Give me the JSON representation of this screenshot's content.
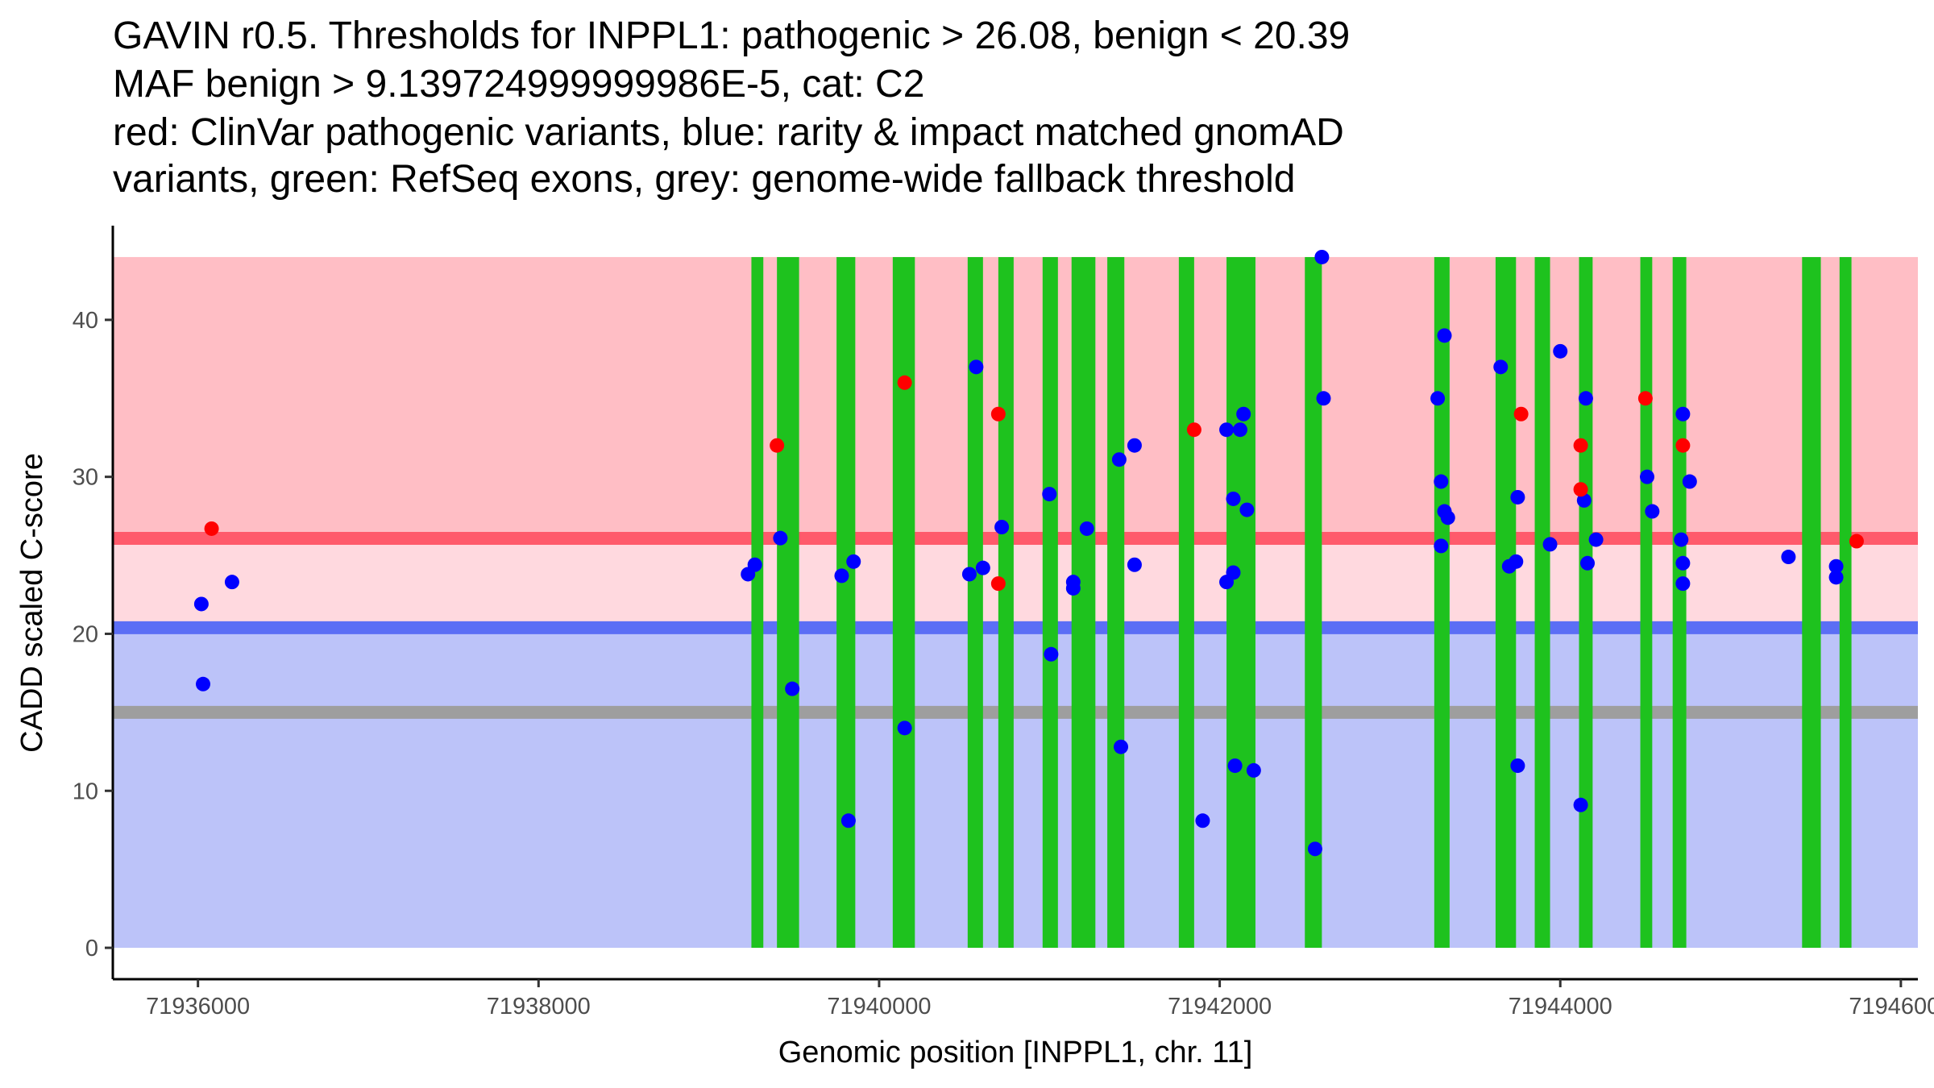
{
  "chart_data": {
    "type": "scatter",
    "title_lines": [
      "GAVIN r0.5. Thresholds for INPPL1: pathogenic > 26.08, benign < 20.39",
      "MAF benign > 9.139724999999986E-5, cat: C2",
      "red: ClinVar pathogenic variants, blue: rarity & impact matched gnomAD",
      "variants, green: RefSeq exons, grey: genome-wide fallback threshold"
    ],
    "xlabel": "Genomic position [INPPL1, chr. 11]",
    "ylabel": "CADD scaled C-score",
    "xlim": [
      71935500,
      71946100
    ],
    "ylim": [
      -2,
      46
    ],
    "x_ticks": [
      71936000,
      71938000,
      71940000,
      71942000,
      71944000,
      71946000
    ],
    "x_tick_labels": [
      "71936000",
      "71938000",
      "71940000",
      "71942000",
      "71944000",
      "71946000"
    ],
    "y_ticks": [
      0,
      10,
      20,
      30,
      40
    ],
    "y_tick_labels": [
      "0",
      "10",
      "20",
      "30",
      "40"
    ],
    "bands": [
      {
        "name": "pathogenic-zone",
        "y0": 26.08,
        "y1": 44,
        "color": "#ffbec5"
      },
      {
        "name": "intermediate-zone",
        "y0": 20.39,
        "y1": 26.08,
        "color": "#ffd9df"
      },
      {
        "name": "benign-zone",
        "y0": 0,
        "y1": 20.39,
        "color": "#bcc3f9"
      }
    ],
    "band_x_range": [
      71935500,
      71946100
    ],
    "band_x_start": 71935500,
    "thresholds": [
      {
        "name": "pathogenic-threshold",
        "y": 26.08,
        "color": "#ff5a6b"
      },
      {
        "name": "benign-threshold",
        "y": 20.39,
        "color": "#5b6ef5"
      },
      {
        "name": "fallback-threshold",
        "y": 15,
        "color": "#9e9e9e"
      }
    ],
    "exons": [
      [
        71939250,
        71939320
      ],
      [
        71939400,
        71939530
      ],
      [
        71939750,
        71939860
      ],
      [
        71940080,
        71940210
      ],
      [
        71940520,
        71940610
      ],
      [
        71940700,
        71940790
      ],
      [
        71940960,
        71941050
      ],
      [
        71941130,
        71941270
      ],
      [
        71941340,
        71941440
      ],
      [
        71941760,
        71941850
      ],
      [
        71942040,
        71942210
      ],
      [
        71942500,
        71942600
      ],
      [
        71943260,
        71943350
      ],
      [
        71943620,
        71943740
      ],
      [
        71943850,
        71943940
      ],
      [
        71944110,
        71944190
      ],
      [
        71944470,
        71944540
      ],
      [
        71944660,
        71944740
      ],
      [
        71945420,
        71945530
      ],
      [
        71945640,
        71945710
      ]
    ],
    "exon_color": "#1ec21e",
    "series": [
      {
        "name": "ClinVar pathogenic",
        "color": "#ff0000",
        "points": [
          [
            71936080,
            26.7
          ],
          [
            71939400,
            32.0
          ],
          [
            71940150,
            36.0
          ],
          [
            71940700,
            34.0
          ],
          [
            71940700,
            23.2
          ],
          [
            71941850,
            33.0
          ],
          [
            71943770,
            34.0
          ],
          [
            71944120,
            32.0
          ],
          [
            71944120,
            29.2
          ],
          [
            71944500,
            35.0
          ],
          [
            71944720,
            32.0
          ],
          [
            71945740,
            25.9
          ]
        ]
      },
      {
        "name": "gnomAD matched",
        "color": "#0000ff",
        "points": [
          [
            71936020,
            21.9
          ],
          [
            71936030,
            16.8
          ],
          [
            71936200,
            23.3
          ],
          [
            71939230,
            23.8
          ],
          [
            71939270,
            24.4
          ],
          [
            71939420,
            26.1
          ],
          [
            71939490,
            16.5
          ],
          [
            71939780,
            23.7
          ],
          [
            71939820,
            8.1
          ],
          [
            71939850,
            24.6
          ],
          [
            71940150,
            14.0
          ],
          [
            71940530,
            23.8
          ],
          [
            71940570,
            37.0
          ],
          [
            71940610,
            24.2
          ],
          [
            71940720,
            26.8
          ],
          [
            71941000,
            28.9
          ],
          [
            71941010,
            18.7
          ],
          [
            71941140,
            23.3
          ],
          [
            71941140,
            22.9
          ],
          [
            71941220,
            26.7
          ],
          [
            71941410,
            31.1
          ],
          [
            71941420,
            12.8
          ],
          [
            71941500,
            32.0
          ],
          [
            71941500,
            24.4
          ],
          [
            71941900,
            8.1
          ],
          [
            71942040,
            33.0
          ],
          [
            71942040,
            23.3
          ],
          [
            71942080,
            28.6
          ],
          [
            71942080,
            23.9
          ],
          [
            71942090,
            11.6
          ],
          [
            71942120,
            33.0
          ],
          [
            71942140,
            34.0
          ],
          [
            71942160,
            27.9
          ],
          [
            71942200,
            11.3
          ],
          [
            71942560,
            6.3
          ],
          [
            71942600,
            44.0
          ],
          [
            71942610,
            35.0
          ],
          [
            71943280,
            35.0
          ],
          [
            71943300,
            29.7
          ],
          [
            71943300,
            25.6
          ],
          [
            71943320,
            27.8
          ],
          [
            71943320,
            39.0
          ],
          [
            71943340,
            27.4
          ],
          [
            71943650,
            37.0
          ],
          [
            71943700,
            24.3
          ],
          [
            71943740,
            24.6
          ],
          [
            71943750,
            28.7
          ],
          [
            71943750,
            11.6
          ],
          [
            71943940,
            25.7
          ],
          [
            71944000,
            38.0
          ],
          [
            71944120,
            9.1
          ],
          [
            71944140,
            28.5
          ],
          [
            71944150,
            35.0
          ],
          [
            71944160,
            24.5
          ],
          [
            71944210,
            26.0
          ],
          [
            71944510,
            30.0
          ],
          [
            71944540,
            27.8
          ],
          [
            71944710,
            26.0
          ],
          [
            71944720,
            34.0
          ],
          [
            71944720,
            24.5
          ],
          [
            71944720,
            23.2
          ],
          [
            71944760,
            29.7
          ],
          [
            71945340,
            24.9
          ],
          [
            71945620,
            24.3
          ],
          [
            71945620,
            23.6
          ]
        ]
      }
    ]
  }
}
